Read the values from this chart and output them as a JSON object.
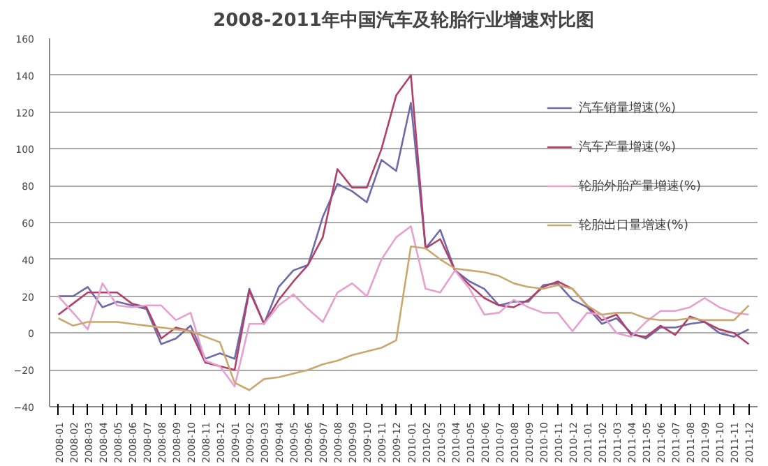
{
  "chart_data": {
    "type": "line",
    "title": "2008-2011年中国汽车及轮胎行业增速对比图",
    "categories": [
      "2008-01",
      "2008-02",
      "2008-03",
      "2008-04",
      "2008-05",
      "2008-06",
      "2008-07",
      "2008-08",
      "2008-09",
      "2008-10",
      "2008-11",
      "2008-12",
      "2009-01",
      "2009-02",
      "2009-03",
      "2009-04",
      "2009-05",
      "2009-06",
      "2009-07",
      "2009-08",
      "2009-09",
      "2009-10",
      "2009-11",
      "2009-12",
      "2010-01",
      "2010-02",
      "2010-03",
      "2010-04",
      "2010-05",
      "2010-06",
      "2010-07",
      "2010-08",
      "2010-09",
      "2010-10",
      "2010-11",
      "2010-12",
      "2011-01",
      "2011-02",
      "2011-03",
      "2011-04",
      "2011-05",
      "2011-06",
      "2011-07",
      "2011-08",
      "2011-09",
      "2011-10",
      "2011-11",
      "2011-12"
    ],
    "series": [
      {
        "name": "汽车销量增速(%)",
        "color": "#6e6aa8",
        "values": [
          20,
          20,
          25,
          14,
          17,
          15,
          13,
          -6,
          -3,
          4,
          -14,
          -11,
          -14,
          24,
          5,
          25,
          34,
          37,
          63,
          81,
          77,
          71,
          94,
          88,
          125,
          46,
          56,
          34,
          28,
          24,
          15,
          17,
          17,
          26,
          27,
          18,
          14,
          5,
          8,
          0,
          -3,
          3,
          3,
          5,
          6,
          0,
          -2,
          2
        ]
      },
      {
        "name": "汽车产量增速(%)",
        "color": "#b0406a",
        "values": [
          10,
          16,
          22,
          22,
          22,
          16,
          14,
          -3,
          3,
          1,
          -16,
          -18,
          -20,
          23,
          5,
          18,
          28,
          37,
          52,
          89,
          79,
          79,
          100,
          129,
          140,
          46,
          51,
          34,
          26,
          19,
          15,
          14,
          18,
          25,
          28,
          24,
          15,
          7,
          10,
          -1,
          -2,
          4,
          -1,
          9,
          6,
          2,
          0,
          -6
        ]
      },
      {
        "name": "轮胎外胎产量增速(%)",
        "color": "#e6a0d0",
        "values": [
          20,
          11,
          2,
          27,
          15,
          14,
          15,
          15,
          7,
          11,
          -15,
          -18,
          -29,
          5,
          5,
          15,
          21,
          13,
          6,
          22,
          27,
          20,
          40,
          52,
          58,
          24,
          22,
          34,
          24,
          10,
          11,
          18,
          14,
          11,
          11,
          1,
          11,
          10,
          0,
          -2,
          6,
          12,
          12,
          14,
          19,
          14,
          11,
          10
        ]
      },
      {
        "name": "轮胎出口量增速(%)",
        "color": "#c8a86e",
        "values": [
          8,
          4,
          6,
          6,
          6,
          5,
          4,
          3,
          2,
          1,
          -2,
          -5,
          -27,
          -31,
          -25,
          -24,
          -22,
          -20,
          -17,
          -15,
          -12,
          -10,
          -8,
          -4,
          47,
          46,
          40,
          35,
          34,
          33,
          31,
          27,
          25,
          24,
          26,
          24,
          15,
          10,
          11,
          11,
          8,
          7,
          7,
          8,
          7,
          7,
          7,
          15
        ]
      }
    ],
    "ylim": [
      -40,
      160
    ],
    "yticks": [
      -40,
      -20,
      0,
      20,
      40,
      60,
      80,
      100,
      120,
      140,
      160
    ],
    "grid": "y",
    "legend": "top right"
  }
}
